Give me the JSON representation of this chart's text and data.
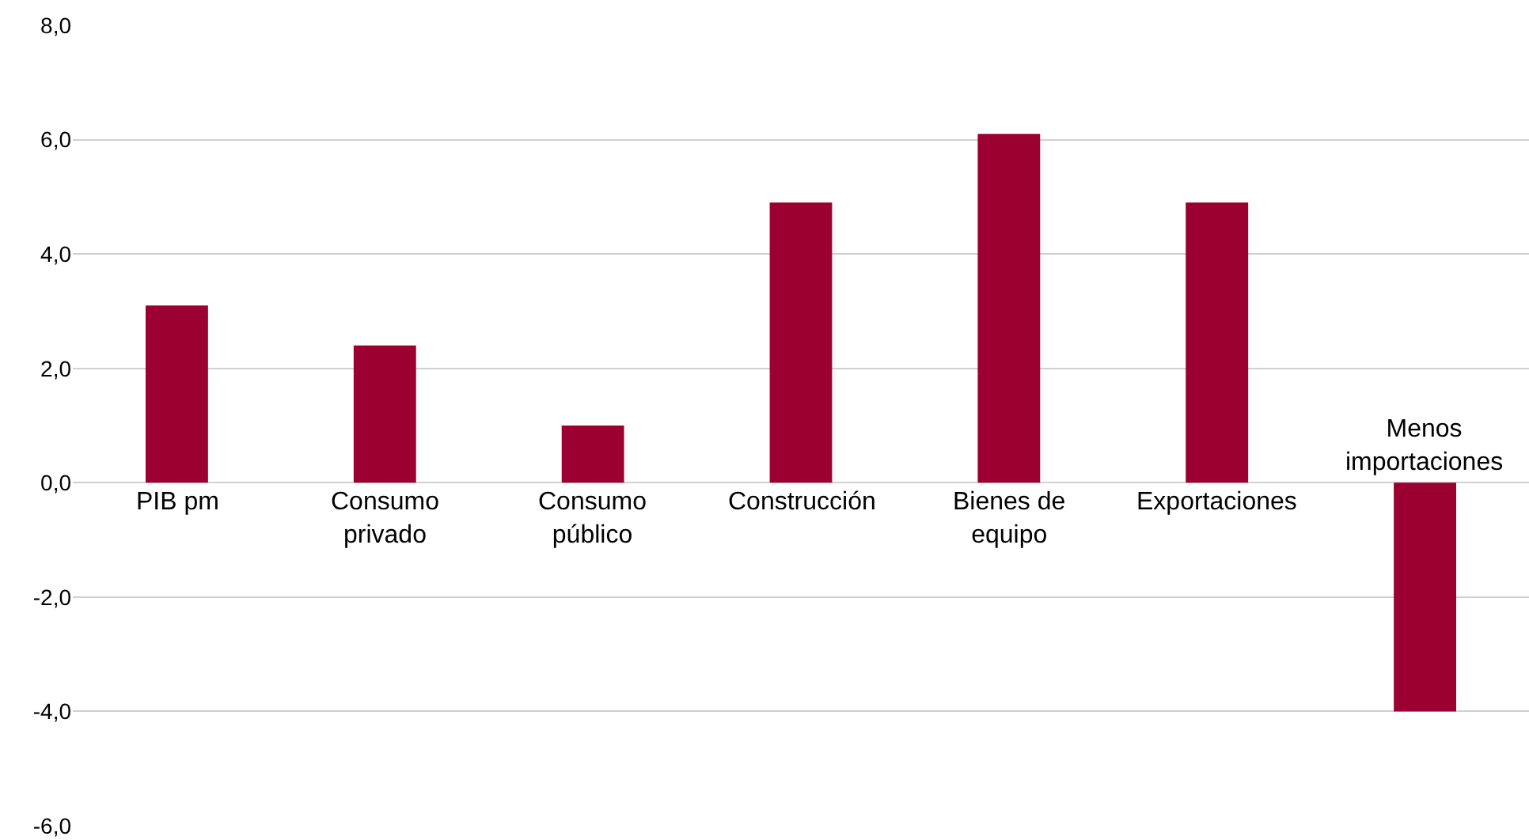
{
  "chart_data": {
    "type": "bar",
    "categories": [
      "PIB pm",
      "Consumo privado",
      "Consumo público",
      "Construcción",
      "Bienes de equipo",
      "Exportaciones",
      "Menos importaciones"
    ],
    "values": [
      3.1,
      2.4,
      1.0,
      4.9,
      6.1,
      4.9,
      -4.0
    ],
    "color": "#9b0030",
    "ylim": [
      -6,
      8
    ],
    "yticks": [
      {
        "value": -6,
        "label": "-6,0"
      },
      {
        "value": -4,
        "label": "-4,0"
      },
      {
        "value": -2,
        "label": "-2,0"
      },
      {
        "value": 0,
        "label": "0,0"
      },
      {
        "value": 2,
        "label": "2,0"
      },
      {
        "value": 4,
        "label": "4,0"
      },
      {
        "value": 6,
        "label": "6,0"
      },
      {
        "value": 8,
        "label": "8,0"
      }
    ],
    "grid": "y"
  }
}
